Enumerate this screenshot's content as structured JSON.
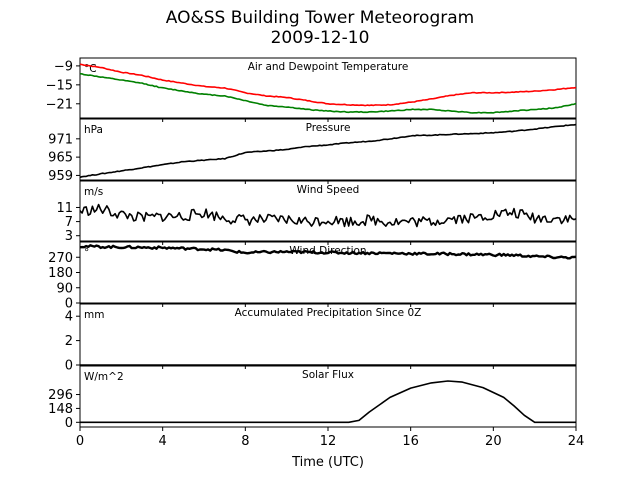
{
  "title": "AO&SS Building Tower Meteorogram",
  "subtitle": "2009-12-10",
  "xlabel": "Time (UTC)",
  "x_ticks": [
    0,
    4,
    8,
    12,
    16,
    20,
    24
  ],
  "xlim": [
    0,
    24
  ],
  "chart_data": [
    {
      "type": "line",
      "title": "Air and Dewpoint Temperature",
      "unit": "°C",
      "ylim": [
        -25.5,
        -6.5
      ],
      "yticks": [
        -9,
        -15,
        -21
      ],
      "series": [
        {
          "name": "",
          "color": "#ff0000",
          "x": [
            0,
            1,
            2,
            3,
            4,
            5,
            6,
            7,
            8,
            9,
            10,
            11,
            12,
            13,
            14,
            15,
            16,
            17,
            18,
            19,
            20,
            21,
            22,
            23,
            24
          ],
          "y": [
            -8.5,
            -9.5,
            -11,
            -12,
            -13.5,
            -14.5,
            -15.5,
            -16,
            -17.5,
            -18.5,
            -19,
            -20,
            -21,
            -21.3,
            -21.5,
            -21.3,
            -20.5,
            -19.5,
            -18.3,
            -17.5,
            -17.5,
            -17.3,
            -17,
            -16.5,
            -15.8
          ]
        },
        {
          "name": "",
          "color": "#008000",
          "x": [
            0,
            1,
            2,
            3,
            4,
            5,
            6,
            7,
            8,
            9,
            10,
            11,
            12,
            13,
            14,
            15,
            16,
            17,
            18,
            19,
            20,
            21,
            22,
            23,
            24
          ],
          "y": [
            -11.5,
            -12.5,
            -13.5,
            -14.5,
            -16,
            -17,
            -18,
            -18.5,
            -20,
            -21.5,
            -22,
            -22.8,
            -23.3,
            -23.6,
            -23.6,
            -23.3,
            -22.8,
            -22.8,
            -23.3,
            -23.8,
            -23.8,
            -23.3,
            -22.8,
            -22.3,
            -21
          ]
        }
      ]
    },
    {
      "type": "line",
      "title": "Pressure",
      "unit": "hPa",
      "ylim": [
        957.5,
        977.5
      ],
      "yticks": [
        959,
        965,
        971
      ],
      "series": [
        {
          "name": "",
          "color": "#000000",
          "x": [
            0,
            1,
            2,
            3,
            4,
            5,
            6,
            7,
            8,
            9,
            10,
            11,
            12,
            13,
            14,
            15,
            16,
            17,
            18,
            19,
            20,
            21,
            22,
            23,
            24
          ],
          "y": [
            958.5,
            959.5,
            960.5,
            961.5,
            962.5,
            963.5,
            964,
            964.5,
            966.5,
            967,
            967.5,
            968.5,
            969,
            969.7,
            970.2,
            971,
            972,
            972.2,
            972.5,
            972.7,
            973,
            973.5,
            974.2,
            975,
            975.7
          ]
        }
      ]
    },
    {
      "type": "line",
      "title": "Wind Speed",
      "unit": "m/s",
      "ylim": [
        1.5,
        18.5
      ],
      "yticks": [
        3,
        7,
        11
      ],
      "series": [
        {
          "name": "",
          "color": "#000000",
          "x": [
            0,
            1,
            2,
            3,
            4,
            5,
            6,
            7,
            8,
            9,
            10,
            11,
            12,
            13,
            14,
            15,
            16,
            17,
            18,
            19,
            20,
            21,
            22,
            23,
            24
          ],
          "y": [
            10,
            10.5,
            9,
            8,
            8.5,
            8.5,
            9.5,
            8,
            7.5,
            7.5,
            7.5,
            7,
            7.5,
            7,
            7.5,
            7,
            7,
            7,
            8,
            8,
            9,
            9.5,
            8,
            8,
            7.5
          ]
        }
      ]
    },
    {
      "type": "line",
      "title": "Wind Direction",
      "unit": "°",
      "ylim": [
        0,
        360
      ],
      "yticks": [
        0,
        90,
        180,
        270
      ],
      "series": [
        {
          "name": "",
          "color": "#000000",
          "x": [
            0,
            1,
            2,
            3,
            4,
            5,
            6,
            7,
            8,
            9,
            10,
            11,
            12,
            13,
            14,
            15,
            16,
            17,
            18,
            19,
            20,
            21,
            22,
            23,
            24
          ],
          "y": [
            335,
            332,
            330,
            328,
            326,
            322,
            318,
            312,
            296,
            300,
            302,
            300,
            298,
            296,
            295,
            294,
            292,
            290,
            290,
            287,
            285,
            282,
            275,
            270,
            268
          ]
        }
      ]
    },
    {
      "type": "line",
      "title": "Accumulated Precipitation Since 0Z",
      "unit": "mm",
      "ylim": [
        0,
        5
      ],
      "yticks": [
        0,
        2,
        4
      ],
      "series": [
        {
          "name": "",
          "color": "#000000",
          "x": [
            0,
            24
          ],
          "y": [
            0,
            0
          ]
        }
      ]
    },
    {
      "type": "line",
      "title": "Solar Flux",
      "unit": "W/m^2",
      "ylim": [
        -50,
        600
      ],
      "yticks": [
        0,
        148,
        296
      ],
      "series": [
        {
          "name": "",
          "color": "#000000",
          "x": [
            0,
            13,
            13.5,
            14,
            15,
            16,
            17,
            17.8,
            18.5,
            19.5,
            20.5,
            21,
            21.5,
            22,
            24
          ],
          "y": [
            0,
            0,
            20,
            110,
            265,
            365,
            420,
            440,
            428,
            370,
            265,
            175,
            75,
            0,
            0
          ]
        }
      ]
    }
  ]
}
